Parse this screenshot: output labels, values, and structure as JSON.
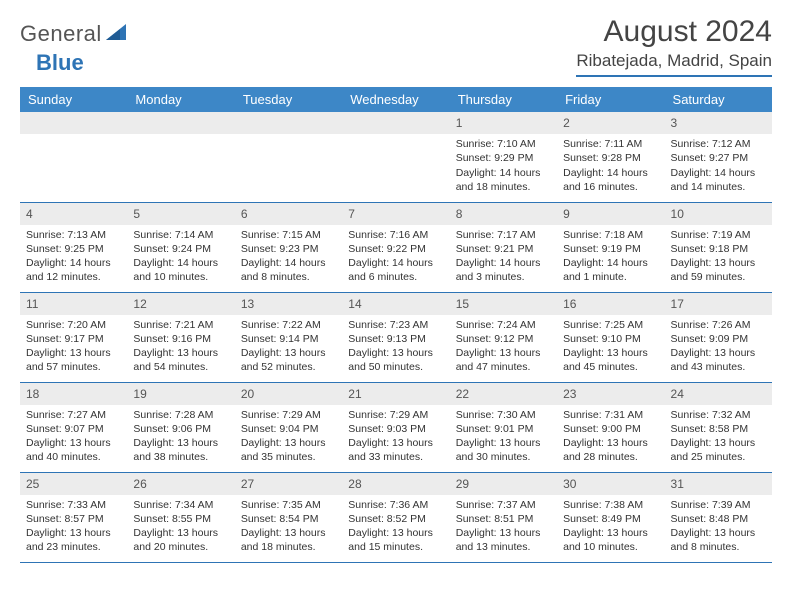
{
  "logo": {
    "text1": "General",
    "text2": "Blue"
  },
  "title": "August 2024",
  "location": "Ribatejada, Madrid, Spain",
  "colors": {
    "header_bg": "#3d87c7",
    "rule": "#2e74b5",
    "daynum_bg": "#ececec",
    "text": "#333333"
  },
  "weekdays": [
    "Sunday",
    "Monday",
    "Tuesday",
    "Wednesday",
    "Thursday",
    "Friday",
    "Saturday"
  ],
  "weeks": [
    [
      null,
      null,
      null,
      null,
      {
        "n": "1",
        "sr": "7:10 AM",
        "ss": "9:29 PM",
        "dl": "14 hours and 18 minutes."
      },
      {
        "n": "2",
        "sr": "7:11 AM",
        "ss": "9:28 PM",
        "dl": "14 hours and 16 minutes."
      },
      {
        "n": "3",
        "sr": "7:12 AM",
        "ss": "9:27 PM",
        "dl": "14 hours and 14 minutes."
      }
    ],
    [
      {
        "n": "4",
        "sr": "7:13 AM",
        "ss": "9:25 PM",
        "dl": "14 hours and 12 minutes."
      },
      {
        "n": "5",
        "sr": "7:14 AM",
        "ss": "9:24 PM",
        "dl": "14 hours and 10 minutes."
      },
      {
        "n": "6",
        "sr": "7:15 AM",
        "ss": "9:23 PM",
        "dl": "14 hours and 8 minutes."
      },
      {
        "n": "7",
        "sr": "7:16 AM",
        "ss": "9:22 PM",
        "dl": "14 hours and 6 minutes."
      },
      {
        "n": "8",
        "sr": "7:17 AM",
        "ss": "9:21 PM",
        "dl": "14 hours and 3 minutes."
      },
      {
        "n": "9",
        "sr": "7:18 AM",
        "ss": "9:19 PM",
        "dl": "14 hours and 1 minute."
      },
      {
        "n": "10",
        "sr": "7:19 AM",
        "ss": "9:18 PM",
        "dl": "13 hours and 59 minutes."
      }
    ],
    [
      {
        "n": "11",
        "sr": "7:20 AM",
        "ss": "9:17 PM",
        "dl": "13 hours and 57 minutes."
      },
      {
        "n": "12",
        "sr": "7:21 AM",
        "ss": "9:16 PM",
        "dl": "13 hours and 54 minutes."
      },
      {
        "n": "13",
        "sr": "7:22 AM",
        "ss": "9:14 PM",
        "dl": "13 hours and 52 minutes."
      },
      {
        "n": "14",
        "sr": "7:23 AM",
        "ss": "9:13 PM",
        "dl": "13 hours and 50 minutes."
      },
      {
        "n": "15",
        "sr": "7:24 AM",
        "ss": "9:12 PM",
        "dl": "13 hours and 47 minutes."
      },
      {
        "n": "16",
        "sr": "7:25 AM",
        "ss": "9:10 PM",
        "dl": "13 hours and 45 minutes."
      },
      {
        "n": "17",
        "sr": "7:26 AM",
        "ss": "9:09 PM",
        "dl": "13 hours and 43 minutes."
      }
    ],
    [
      {
        "n": "18",
        "sr": "7:27 AM",
        "ss": "9:07 PM",
        "dl": "13 hours and 40 minutes."
      },
      {
        "n": "19",
        "sr": "7:28 AM",
        "ss": "9:06 PM",
        "dl": "13 hours and 38 minutes."
      },
      {
        "n": "20",
        "sr": "7:29 AM",
        "ss": "9:04 PM",
        "dl": "13 hours and 35 minutes."
      },
      {
        "n": "21",
        "sr": "7:29 AM",
        "ss": "9:03 PM",
        "dl": "13 hours and 33 minutes."
      },
      {
        "n": "22",
        "sr": "7:30 AM",
        "ss": "9:01 PM",
        "dl": "13 hours and 30 minutes."
      },
      {
        "n": "23",
        "sr": "7:31 AM",
        "ss": "9:00 PM",
        "dl": "13 hours and 28 minutes."
      },
      {
        "n": "24",
        "sr": "7:32 AM",
        "ss": "8:58 PM",
        "dl": "13 hours and 25 minutes."
      }
    ],
    [
      {
        "n": "25",
        "sr": "7:33 AM",
        "ss": "8:57 PM",
        "dl": "13 hours and 23 minutes."
      },
      {
        "n": "26",
        "sr": "7:34 AM",
        "ss": "8:55 PM",
        "dl": "13 hours and 20 minutes."
      },
      {
        "n": "27",
        "sr": "7:35 AM",
        "ss": "8:54 PM",
        "dl": "13 hours and 18 minutes."
      },
      {
        "n": "28",
        "sr": "7:36 AM",
        "ss": "8:52 PM",
        "dl": "13 hours and 15 minutes."
      },
      {
        "n": "29",
        "sr": "7:37 AM",
        "ss": "8:51 PM",
        "dl": "13 hours and 13 minutes."
      },
      {
        "n": "30",
        "sr": "7:38 AM",
        "ss": "8:49 PM",
        "dl": "13 hours and 10 minutes."
      },
      {
        "n": "31",
        "sr": "7:39 AM",
        "ss": "8:48 PM",
        "dl": "13 hours and 8 minutes."
      }
    ]
  ],
  "labels": {
    "sunrise": "Sunrise: ",
    "sunset": "Sunset: ",
    "daylight": "Daylight: "
  }
}
